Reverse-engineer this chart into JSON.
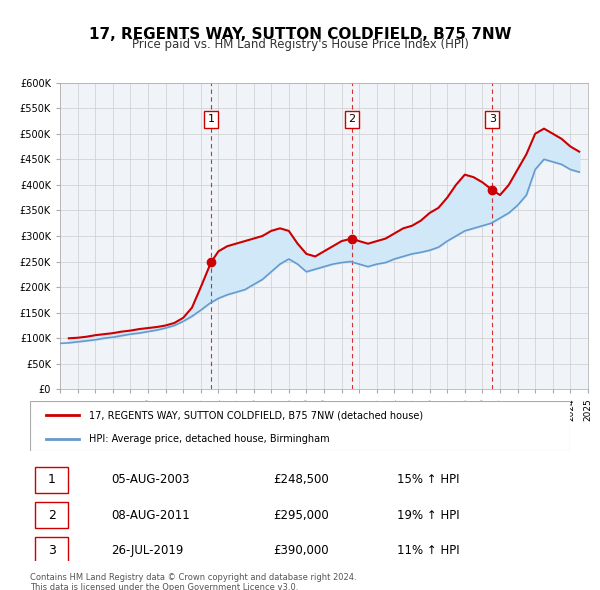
{
  "title": "17, REGENTS WAY, SUTTON COLDFIELD, B75 7NW",
  "subtitle": "Price paid vs. HM Land Registry's House Price Index (HPI)",
  "legend_label_red": "17, REGENTS WAY, SUTTON COLDFIELD, B75 7NW (detached house)",
  "legend_label_blue": "HPI: Average price, detached house, Birmingham",
  "footer_line1": "Contains HM Land Registry data © Crown copyright and database right 2024.",
  "footer_line2": "This data is licensed under the Open Government Licence v3.0.",
  "xmin": 1995,
  "xmax": 2025,
  "ymin": 0,
  "ymax": 600000,
  "ytick_step": 50000,
  "transactions": [
    {
      "label": "1",
      "date": "05-AUG-2003",
      "price": 248500,
      "pct": "15%",
      "x": 2003.58
    },
    {
      "label": "2",
      "date": "08-AUG-2011",
      "price": 295000,
      "pct": "19%",
      "x": 2011.58
    },
    {
      "label": "3",
      "date": "26-JUL-2019",
      "price": 390000,
      "pct": "11%",
      "x": 2019.56
    }
  ],
  "red_line": {
    "x": [
      1995.5,
      1996.0,
      1996.5,
      1997.0,
      1997.5,
      1998.0,
      1998.5,
      1999.0,
      1999.5,
      2000.0,
      2000.5,
      2001.0,
      2001.5,
      2002.0,
      2002.5,
      2003.0,
      2003.58,
      2004.0,
      2004.5,
      2005.0,
      2005.5,
      2006.0,
      2006.5,
      2007.0,
      2007.5,
      2008.0,
      2008.5,
      2009.0,
      2009.5,
      2010.0,
      2010.5,
      2011.0,
      2011.58,
      2012.0,
      2012.5,
      2013.0,
      2013.5,
      2014.0,
      2014.5,
      2015.0,
      2015.5,
      2016.0,
      2016.5,
      2017.0,
      2017.5,
      2018.0,
      2018.5,
      2019.0,
      2019.56,
      2020.0,
      2020.5,
      2021.0,
      2021.5,
      2022.0,
      2022.5,
      2023.0,
      2023.5,
      2024.0,
      2024.5
    ],
    "y": [
      100000,
      101000,
      103000,
      106000,
      108000,
      110000,
      113000,
      115000,
      118000,
      120000,
      122000,
      125000,
      130000,
      140000,
      160000,
      200000,
      248500,
      270000,
      280000,
      285000,
      290000,
      295000,
      300000,
      310000,
      315000,
      310000,
      285000,
      265000,
      260000,
      270000,
      280000,
      290000,
      295000,
      290000,
      285000,
      290000,
      295000,
      305000,
      315000,
      320000,
      330000,
      345000,
      355000,
      375000,
      400000,
      420000,
      415000,
      405000,
      390000,
      380000,
      400000,
      430000,
      460000,
      500000,
      510000,
      500000,
      490000,
      475000,
      465000
    ]
  },
  "blue_line": {
    "x": [
      1995.0,
      1995.5,
      1996.0,
      1996.5,
      1997.0,
      1997.5,
      1998.0,
      1998.5,
      1999.0,
      1999.5,
      2000.0,
      2000.5,
      2001.0,
      2001.5,
      2002.0,
      2002.5,
      2003.0,
      2003.5,
      2004.0,
      2004.5,
      2005.0,
      2005.5,
      2006.0,
      2006.5,
      2007.0,
      2007.5,
      2008.0,
      2008.5,
      2009.0,
      2009.5,
      2010.0,
      2010.5,
      2011.0,
      2011.5,
      2012.0,
      2012.5,
      2013.0,
      2013.5,
      2014.0,
      2014.5,
      2015.0,
      2015.5,
      2016.0,
      2016.5,
      2017.0,
      2017.5,
      2018.0,
      2018.5,
      2019.0,
      2019.5,
      2020.0,
      2020.5,
      2021.0,
      2021.5,
      2022.0,
      2022.5,
      2023.0,
      2023.5,
      2024.0,
      2024.5
    ],
    "y": [
      90000,
      91000,
      93000,
      95000,
      97000,
      100000,
      102000,
      105000,
      108000,
      110000,
      113000,
      116000,
      120000,
      125000,
      133000,
      143000,
      155000,
      168000,
      178000,
      185000,
      190000,
      195000,
      205000,
      215000,
      230000,
      245000,
      255000,
      245000,
      230000,
      235000,
      240000,
      245000,
      248000,
      250000,
      245000,
      240000,
      245000,
      248000,
      255000,
      260000,
      265000,
      268000,
      272000,
      278000,
      290000,
      300000,
      310000,
      315000,
      320000,
      325000,
      335000,
      345000,
      360000,
      380000,
      430000,
      450000,
      445000,
      440000,
      430000,
      425000
    ]
  },
  "fill_color": "#d0e8f8",
  "red_color": "#cc0000",
  "blue_color": "#6699cc",
  "grid_color": "#cccccc",
  "background_color": "#f0f4f8"
}
